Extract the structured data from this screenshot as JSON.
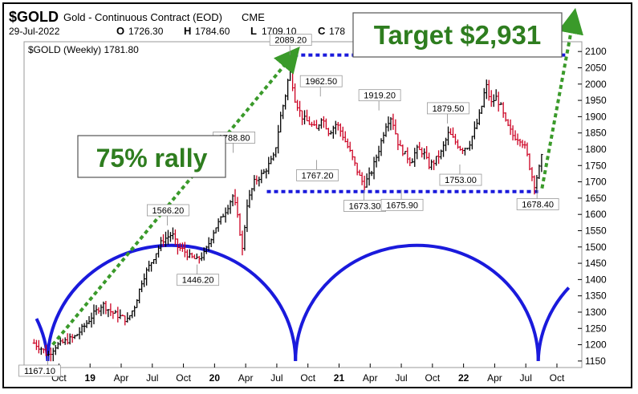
{
  "header": {
    "symbol": "$GOLD",
    "description": "Gold - Continuous Contract (EOD)",
    "exchange": "CME",
    "date": "29-Jul-2022",
    "open_label": "O",
    "open_value": "1726.30",
    "high_label": "H",
    "high_value": "1784.60",
    "low_label": "L",
    "low_value": "1709.10",
    "close_label": "C",
    "close_value_partial": "178",
    "legend_label": "$GOLD (Weekly) 1781.80"
  },
  "colors": {
    "up_bar": "#000000",
    "down_bar": "#cc0022",
    "cycle_arc": "#1a1adc",
    "range_line": "#1a1adc",
    "arrow": "#3a9a2a",
    "callout_text": "#2e7d1f"
  },
  "callouts": {
    "rally": "75% rally",
    "target": "Target $2,931"
  },
  "chart_data": {
    "type": "ohlc",
    "y_axis": {
      "ticks": [
        1150,
        1200,
        1250,
        1300,
        1350,
        1400,
        1450,
        1500,
        1550,
        1600,
        1650,
        1700,
        1750,
        1800,
        1850,
        1900,
        1950,
        2000,
        2050,
        2100
      ],
      "ylim": [
        1130,
        2130
      ]
    },
    "x_axis": {
      "labels": [
        {
          "text": "Oct",
          "t": 2018.75,
          "bold": false
        },
        {
          "text": "19",
          "t": 2019.0,
          "bold": true
        },
        {
          "text": "Apr",
          "t": 2019.25,
          "bold": false
        },
        {
          "text": "Jul",
          "t": 2019.5,
          "bold": false
        },
        {
          "text": "Oct",
          "t": 2019.75,
          "bold": false
        },
        {
          "text": "20",
          "t": 2020.0,
          "bold": true
        },
        {
          "text": "Apr",
          "t": 2020.25,
          "bold": false
        },
        {
          "text": "Jul",
          "t": 2020.5,
          "bold": false
        },
        {
          "text": "Oct",
          "t": 2020.75,
          "bold": false
        },
        {
          "text": "21",
          "t": 2021.0,
          "bold": true
        },
        {
          "text": "Apr",
          "t": 2021.25,
          "bold": false
        },
        {
          "text": "Jul",
          "t": 2021.5,
          "bold": false
        },
        {
          "text": "Oct",
          "t": 2021.75,
          "bold": false
        },
        {
          "text": "22",
          "t": 2022.0,
          "bold": true
        },
        {
          "text": "Apr",
          "t": 2022.25,
          "bold": false
        },
        {
          "text": "Jul",
          "t": 2022.5,
          "bold": false
        },
        {
          "text": "Oct",
          "t": 2022.75,
          "bold": false
        }
      ],
      "xlim": [
        2018.47,
        2022.95
      ]
    },
    "price_path": [
      [
        2018.55,
        1205
      ],
      [
        2018.62,
        1185
      ],
      [
        2018.66,
        1167
      ],
      [
        2018.72,
        1195
      ],
      [
        2018.8,
        1210
      ],
      [
        2018.88,
        1225
      ],
      [
        2018.95,
        1255
      ],
      [
        2019.02,
        1290
      ],
      [
        2019.1,
        1325
      ],
      [
        2019.17,
        1300
      ],
      [
        2019.25,
        1285
      ],
      [
        2019.3,
        1275
      ],
      [
        2019.36,
        1320
      ],
      [
        2019.42,
        1400
      ],
      [
        2019.5,
        1460
      ],
      [
        2019.58,
        1520
      ],
      [
        2019.66,
        1540
      ],
      [
        2019.7,
        1500
      ],
      [
        2019.75,
        1490
      ],
      [
        2019.8,
        1470
      ],
      [
        2019.86,
        1460
      ],
      [
        2019.92,
        1480
      ],
      [
        2020.0,
        1555
      ],
      [
        2020.05,
        1585
      ],
      [
        2020.1,
        1620
      ],
      [
        2020.15,
        1660
      ],
      [
        2020.2,
        1560
      ],
      [
        2020.22,
        1480
      ],
      [
        2020.26,
        1630
      ],
      [
        2020.32,
        1700
      ],
      [
        2020.4,
        1730
      ],
      [
        2020.48,
        1780
      ],
      [
        2020.53,
        1900
      ],
      [
        2020.58,
        1985
      ],
      [
        2020.605,
        2060
      ],
      [
        2020.64,
        1960
      ],
      [
        2020.7,
        1900
      ],
      [
        2020.76,
        1880
      ],
      [
        2020.82,
        1860
      ],
      [
        2020.86,
        1900
      ],
      [
        2020.92,
        1850
      ],
      [
        2020.98,
        1880
      ],
      [
        2021.02,
        1850
      ],
      [
        2021.09,
        1790
      ],
      [
        2021.16,
        1720
      ],
      [
        2021.2,
        1690
      ],
      [
        2021.26,
        1730
      ],
      [
        2021.32,
        1800
      ],
      [
        2021.38,
        1880
      ],
      [
        2021.42,
        1900
      ],
      [
        2021.48,
        1810
      ],
      [
        2021.54,
        1780
      ],
      [
        2021.58,
        1760
      ],
      [
        2021.62,
        1800
      ],
      [
        2021.68,
        1790
      ],
      [
        2021.72,
        1750
      ],
      [
        2021.76,
        1760
      ],
      [
        2021.82,
        1790
      ],
      [
        2021.88,
        1850
      ],
      [
        2021.94,
        1820
      ],
      [
        2021.98,
        1800
      ],
      [
        2022.04,
        1810
      ],
      [
        2022.1,
        1870
      ],
      [
        2022.14,
        1920
      ],
      [
        2022.18,
        2000
      ],
      [
        2022.22,
        1940
      ],
      [
        2022.26,
        1960
      ],
      [
        2022.3,
        1930
      ],
      [
        2022.34,
        1880
      ],
      [
        2022.4,
        1840
      ],
      [
        2022.46,
        1830
      ],
      [
        2022.5,
        1800
      ],
      [
        2022.54,
        1730
      ],
      [
        2022.57,
        1690
      ],
      [
        2022.6,
        1730
      ],
      [
        2022.62,
        1760
      ],
      [
        2022.63,
        1782
      ]
    ],
    "price_labels": [
      {
        "text": "1167.10",
        "t": 2018.66,
        "v": 1167,
        "pos": "below-left"
      },
      {
        "text": "1566.20",
        "t": 2019.62,
        "v": 1566,
        "pos": "above"
      },
      {
        "text": "1446.20",
        "t": 2019.86,
        "v": 1446,
        "pos": "below"
      },
      {
        "text": "1788.80",
        "t": 2020.15,
        "v": 1789,
        "pos": "above"
      },
      {
        "text": "2089.20",
        "t": 2020.605,
        "v": 2089,
        "pos": "above"
      },
      {
        "text": "1962.50",
        "t": 2020.85,
        "v": 1962,
        "pos": "above"
      },
      {
        "text": "1767.20",
        "t": 2020.82,
        "v": 1767,
        "pos": "below"
      },
      {
        "text": "1919.20",
        "t": 2021.32,
        "v": 1919,
        "pos": "above"
      },
      {
        "text": "1673.30",
        "t": 2021.2,
        "v": 1673,
        "pos": "below"
      },
      {
        "text": "1675.90",
        "t": 2021.5,
        "v": 1676,
        "pos": "below"
      },
      {
        "text": "1879.50",
        "t": 2021.87,
        "v": 1879,
        "pos": "above"
      },
      {
        "text": "1753.00",
        "t": 2021.97,
        "v": 1753,
        "pos": "below"
      },
      {
        "text": "1678.40",
        "t": 2022.59,
        "v": 1678,
        "pos": "below"
      }
    ],
    "range_top": 2089,
    "range_bottom": 1670,
    "arcs": [
      {
        "t_start": 2018.66,
        "t_end": 2020.65
      },
      {
        "t_start": 2020.65,
        "t_end": 2022.6
      }
    ],
    "arc_peak": 1505,
    "arrows": [
      {
        "from": [
          2018.7,
          1200
        ],
        "to": [
          2020.62,
          2085
        ]
      },
      {
        "from": [
          2022.63,
          1680
        ],
        "to": [
          2022.88,
          2195
        ]
      }
    ]
  }
}
